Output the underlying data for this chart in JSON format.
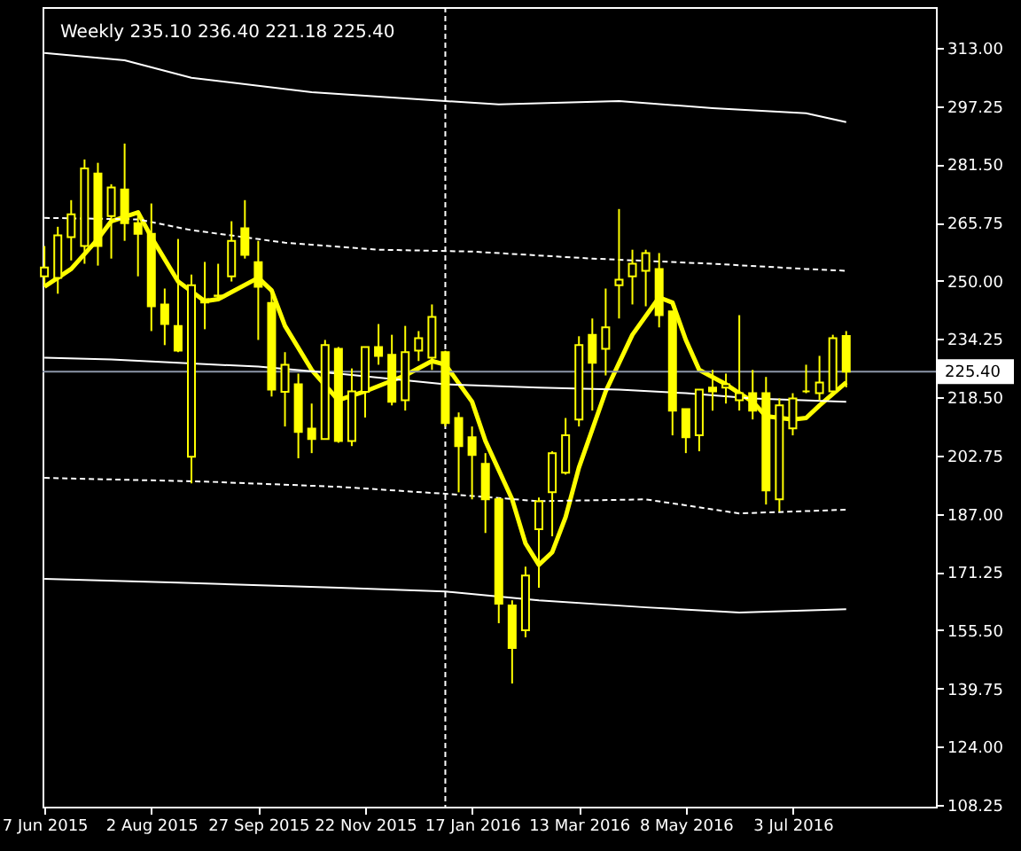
{
  "chart_data": {
    "type": "candlestick",
    "title": "Weekly  235.10 236.40 221.18 225.40",
    "color": "#ffff00",
    "x": [
      "2015-06-07",
      "2015-06-14",
      "2015-06-21",
      "2015-06-28",
      "2015-07-05",
      "2015-07-12",
      "2015-07-19",
      "2015-07-26",
      "2015-08-02",
      "2015-08-09",
      "2015-08-16",
      "2015-08-23",
      "2015-08-30",
      "2015-09-06",
      "2015-09-13",
      "2015-09-20",
      "2015-09-27",
      "2015-10-04",
      "2015-10-11",
      "2015-10-18",
      "2015-10-25",
      "2015-11-01",
      "2015-11-08",
      "2015-11-15",
      "2015-11-22",
      "2015-11-29",
      "2015-12-06",
      "2015-12-13",
      "2015-12-20",
      "2015-12-27",
      "2016-01-03",
      "2016-01-10",
      "2016-01-17",
      "2016-01-24",
      "2016-01-31",
      "2016-02-07",
      "2016-02-14",
      "2016-02-21",
      "2016-02-28",
      "2016-03-06",
      "2016-03-13",
      "2016-03-20",
      "2016-03-27",
      "2016-04-03",
      "2016-04-10",
      "2016-04-17",
      "2016-04-24",
      "2016-05-01",
      "2016-05-08",
      "2016-05-15",
      "2016-05-22",
      "2016-05-29",
      "2016-06-05",
      "2016-06-12",
      "2016-06-19",
      "2016-06-26",
      "2016-07-03",
      "2016-07-10",
      "2016-07-17",
      "2016-07-24",
      "2016-07-31"
    ],
    "ohlc": [
      [
        251.2,
        259.4,
        248.4,
        253.6
      ],
      [
        250.8,
        264.6,
        246.5,
        262.3
      ],
      [
        261.8,
        271.8,
        255.5,
        268.0
      ],
      [
        259.4,
        282.8,
        254.6,
        280.4
      ],
      [
        279.0,
        281.9,
        254.1,
        259.4
      ],
      [
        267.5,
        276.1,
        256.0,
        275.2
      ],
      [
        274.7,
        287.1,
        260.8,
        265.6
      ],
      [
        265.6,
        268.9,
        251.2,
        262.7
      ],
      [
        262.7,
        270.9,
        236.4,
        243.1
      ],
      [
        243.6,
        247.9,
        232.6,
        238.3
      ],
      [
        237.8,
        261.3,
        230.7,
        231.1
      ],
      [
        202.4,
        251.7,
        195.2,
        248.8
      ],
      [
        245.0,
        255.1,
        236.9,
        244.1
      ],
      [
        246.0,
        254.6,
        244.5,
        245.9
      ],
      [
        251.2,
        266.1,
        249.8,
        260.8
      ],
      [
        264.2,
        271.8,
        256.0,
        257.0
      ],
      [
        255.0,
        260.8,
        234.0,
        248.4
      ],
      [
        244.0,
        246.5,
        218.7,
        220.6
      ],
      [
        220.0,
        230.7,
        210.6,
        227.3
      ],
      [
        222.0,
        224.9,
        202.0,
        209.1
      ],
      [
        210.0,
        216.8,
        203.4,
        207.2
      ],
      [
        207.2,
        234.0,
        207.2,
        232.6
      ],
      [
        231.6,
        232.1,
        206.2,
        206.7
      ],
      [
        206.7,
        226.3,
        205.3,
        220.1
      ],
      [
        220.0,
        232.1,
        213.0,
        232.1
      ],
      [
        232.1,
        238.3,
        227.3,
        229.7
      ],
      [
        230.0,
        235.4,
        216.3,
        217.3
      ],
      [
        217.7,
        237.8,
        214.9,
        230.7
      ],
      [
        231.1,
        236.4,
        228.3,
        234.5
      ],
      [
        229.2,
        243.6,
        225.9,
        240.2
      ],
      [
        230.7,
        231.1,
        210.6,
        211.5
      ],
      [
        212.9,
        214.4,
        192.8,
        205.3
      ],
      [
        207.7,
        210.6,
        190.9,
        202.9
      ],
      [
        200.5,
        203.4,
        181.8,
        190.9
      ],
      [
        190.9,
        191.4,
        157.4,
        162.7
      ],
      [
        162.2,
        163.6,
        141.1,
        150.7
      ],
      [
        155.5,
        172.7,
        153.6,
        170.3
      ],
      [
        182.8,
        191.4,
        167.0,
        190.4
      ],
      [
        192.8,
        203.9,
        180.9,
        203.4
      ],
      [
        198.1,
        212.9,
        197.6,
        208.2
      ],
      [
        212.5,
        235.0,
        210.6,
        232.6
      ],
      [
        235.4,
        239.8,
        214.9,
        227.8
      ],
      [
        231.6,
        247.9,
        224.4,
        237.4
      ],
      [
        248.8,
        269.4,
        239.8,
        250.3
      ],
      [
        251.2,
        258.4,
        243.6,
        254.6
      ],
      [
        252.7,
        258.4,
        243.1,
        257.5
      ],
      [
        253.2,
        257.5,
        237.4,
        240.7
      ],
      [
        241.7,
        241.7,
        208.2,
        214.9
      ],
      [
        215.3,
        215.3,
        203.4,
        207.7
      ],
      [
        208.2,
        220.6,
        203.9,
        220.6
      ],
      [
        221.1,
        225.9,
        214.9,
        220.1
      ],
      [
        221.1,
        224.9,
        216.8,
        222.0
      ],
      [
        217.7,
        240.7,
        214.9,
        219.6
      ],
      [
        219.6,
        225.9,
        212.5,
        214.9
      ],
      [
        219.6,
        224.0,
        189.5,
        193.3
      ],
      [
        190.9,
        218.2,
        187.6,
        216.3
      ],
      [
        210.1,
        219.6,
        208.2,
        218.2
      ],
      [
        220.1,
        227.3,
        219.6,
        220.1
      ],
      [
        219.6,
        229.7,
        217.7,
        222.5
      ],
      [
        220.1,
        235.4,
        219.6,
        234.5
      ],
      [
        235.1,
        236.4,
        221.18,
        225.4
      ]
    ],
    "series": [
      {
        "type": "line",
        "color": "#ffff00",
        "line_style": "solid",
        "x": [
          "2015-06-07",
          "2015-06-21",
          "2015-07-05",
          "2015-07-12",
          "2015-07-26",
          "2015-08-02",
          "2015-08-16",
          "2015-08-30",
          "2015-09-06",
          "2015-09-27",
          "2015-10-04",
          "2015-10-11",
          "2015-10-25",
          "2015-11-08",
          "2015-11-22",
          "2015-12-13",
          "2015-12-27",
          "2016-01-03",
          "2016-01-17",
          "2016-01-24",
          "2016-02-07",
          "2016-02-14",
          "2016-02-21",
          "2016-02-28",
          "2016-03-06",
          "2016-03-13",
          "2016-03-27",
          "2016-04-10",
          "2016-04-24",
          "2016-05-01",
          "2016-05-08",
          "2016-05-15",
          "2016-05-29",
          "2016-06-05",
          "2016-06-12",
          "2016-06-19",
          "2016-07-03",
          "2016-07-10",
          "2016-07-17",
          "2016-07-31"
        ],
        "values": [
          248.4,
          253.2,
          261.3,
          266.1,
          268.5,
          261.8,
          249.8,
          244.5,
          245.0,
          250.8,
          247.4,
          237.8,
          225.9,
          217.7,
          220.1,
          224.4,
          228.3,
          227.3,
          217.3,
          206.7,
          190.9,
          179.0,
          173.2,
          176.6,
          186.1,
          199.5,
          220.1,
          235.4,
          245.5,
          244.1,
          234.0,
          225.9,
          222.0,
          219.6,
          217.3,
          213.4,
          212.5,
          212.9,
          216.3,
          222.5
        ]
      },
      {
        "type": "line",
        "color": "#ffffff",
        "line_style": "solid",
        "x": [
          "2015-06-07",
          "2015-07-19",
          "2015-08-23",
          "2015-10-25",
          "2016-01-03",
          "2016-01-31",
          "2016-04-03",
          "2016-05-22",
          "2016-07-10",
          "2016-07-31"
        ],
        "values": [
          311.6,
          309.6,
          304.9,
          301.0,
          298.6,
          297.7,
          298.6,
          296.7,
          295.3,
          292.9
        ]
      },
      {
        "type": "line",
        "color": "#ffffff",
        "line_style": "dashed",
        "x": [
          "2015-06-07",
          "2015-07-26",
          "2015-08-23",
          "2015-10-11",
          "2015-11-29",
          "2016-01-17",
          "2016-03-20",
          "2016-05-22",
          "2016-07-10",
          "2016-07-31"
        ],
        "values": [
          267.0,
          266.6,
          263.7,
          260.3,
          258.4,
          257.9,
          256.0,
          254.6,
          253.2,
          252.7
        ]
      },
      {
        "type": "line",
        "color": "#ffffff",
        "line_style": "solid",
        "x": [
          "2015-06-07",
          "2015-07-12",
          "2015-08-16",
          "2015-09-27",
          "2015-11-08",
          "2016-01-03",
          "2016-02-21",
          "2016-04-03",
          "2016-05-08",
          "2016-06-12",
          "2016-07-31"
        ],
        "values": [
          229.2,
          228.7,
          227.8,
          226.8,
          224.9,
          222.0,
          221.1,
          220.6,
          219.6,
          218.2,
          217.3
        ]
      },
      {
        "type": "line",
        "color": "#ffffff",
        "line_style": "dashed",
        "x": [
          "2015-06-07",
          "2015-08-30",
          "2015-11-08",
          "2016-01-03",
          "2016-02-21",
          "2016-04-17",
          "2016-06-05",
          "2016-07-31"
        ],
        "values": [
          196.7,
          195.7,
          194.3,
          192.4,
          190.4,
          190.9,
          187.1,
          188.1
        ]
      },
      {
        "type": "line",
        "color": "#ffffff",
        "line_style": "solid",
        "x": [
          "2015-06-07",
          "2015-08-16",
          "2015-11-08",
          "2016-01-03",
          "2016-02-21",
          "2016-04-17",
          "2016-06-05",
          "2016-07-31"
        ],
        "values": [
          169.4,
          168.4,
          167.0,
          166.0,
          163.6,
          161.7,
          160.3,
          161.2
        ]
      }
    ],
    "xlim": [
      "2015-06-06",
      "2016-09-16"
    ],
    "xticks": [
      {
        "value": "2015-06-07",
        "label": "7 Jun 2015"
      },
      {
        "value": "2015-08-02",
        "label": "2 Aug 2015"
      },
      {
        "value": "2015-09-27",
        "label": "27 Sep 2015"
      },
      {
        "value": "2015-11-22",
        "label": "22 Nov 2015"
      },
      {
        "value": "2016-01-17",
        "label": "17 Jan 2016"
      },
      {
        "value": "2016-03-13",
        "label": "13 Mar 2016"
      },
      {
        "value": "2016-05-08",
        "label": "8 May 2016"
      },
      {
        "value": "2016-07-03",
        "label": "3 Jul 2016"
      }
    ],
    "ylim": [
      107.8,
      324.0
    ],
    "yticks": [
      {
        "value": 313,
        "label": "313.00"
      },
      {
        "value": 297.25,
        "label": "297.25"
      },
      {
        "value": 281.5,
        "label": "281.50"
      },
      {
        "value": 265.75,
        "label": "265.75"
      },
      {
        "value": 250,
        "label": "250.00"
      },
      {
        "value": 234.25,
        "label": "234.25"
      },
      {
        "value": 218.5,
        "label": "218.50"
      },
      {
        "value": 202.75,
        "label": "202.75"
      },
      {
        "value": 187,
        "label": "187.00"
      },
      {
        "value": 171.25,
        "label": "171.25"
      },
      {
        "value": 155.5,
        "label": "155.50"
      },
      {
        "value": 139.75,
        "label": "139.75"
      },
      {
        "value": 124,
        "label": "124.00"
      },
      {
        "value": 108.25,
        "label": "108.25"
      }
    ],
    "ref_lines": [
      {
        "axis": "y",
        "value": 225.4,
        "label": "225.40",
        "color": "#8c96a8",
        "line_style": "solid"
      },
      {
        "axis": "x",
        "value": "2016-01-03",
        "label": null,
        "color": "#ffffff",
        "line_style": "dashed"
      }
    ],
    "grid": false
  }
}
